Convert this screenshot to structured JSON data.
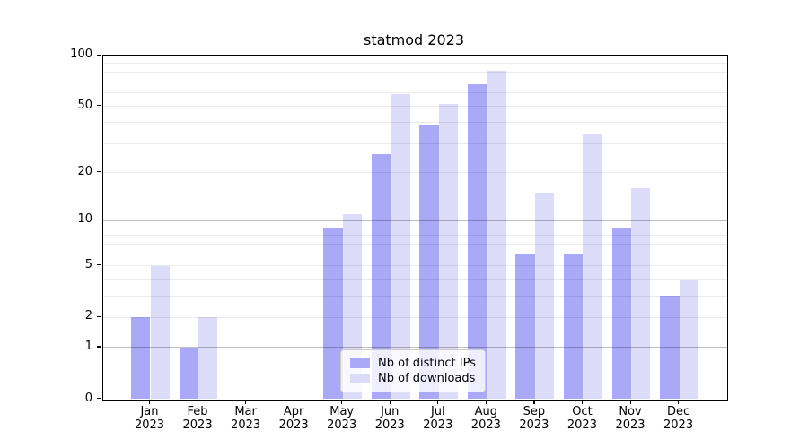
{
  "figure": {
    "title": "statmod 2023",
    "background": "#ffffff"
  },
  "chart_data": {
    "type": "bar",
    "title": "statmod 2023",
    "x": {
      "categories": [
        "Jan",
        "Feb",
        "Mar",
        "Apr",
        "May",
        "Jun",
        "Jul",
        "Aug",
        "Sep",
        "Oct",
        "Nov",
        "Dec"
      ],
      "sub_label": "2023"
    },
    "series": [
      {
        "name": "Nb of distinct IPs",
        "color": "#a9a9f8",
        "values": [
          2,
          1,
          0,
          0,
          9,
          26,
          39,
          68,
          6,
          6,
          9,
          3
        ]
      },
      {
        "name": "Nb of downloads",
        "color": "#dcdcf9",
        "values": [
          5,
          2,
          0,
          0,
          11,
          59,
          52,
          81,
          15,
          34,
          16,
          4
        ]
      }
    ],
    "y_axis": {
      "scale": "log1p",
      "lim": [
        0,
        100
      ],
      "tick_labels": [
        0,
        1,
        2,
        5,
        10,
        20,
        50,
        100
      ],
      "major_gridlines": [
        1,
        10,
        100
      ],
      "minor_gridlines": [
        2,
        3,
        4,
        5,
        6,
        7,
        8,
        9,
        20,
        30,
        40,
        50,
        60,
        70,
        80,
        90
      ]
    },
    "grid": true,
    "grid_above_bars": true,
    "legend_position": "lower center",
    "bar_width_ratio": 0.4
  },
  "colors": {
    "bar_distinct_ips": "#a9a9f8",
    "bar_downloads": "#dcdcf9",
    "grid_major": "rgba(0,0,0,0.26)",
    "grid_minor": "rgba(0,0,0,0.08)",
    "axis": "#000000",
    "text": "#000000",
    "legend_background": "rgba(255,255,255,0.8)",
    "legend_border": "#cccccc"
  }
}
